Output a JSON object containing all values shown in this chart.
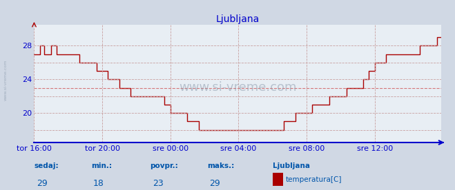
{
  "title": "Ljubljana",
  "bg_color": "#d0d8e4",
  "plot_bg_color": "#e8eef4",
  "line_color": "#aa0000",
  "axis_color": "#0000cc",
  "yticks": [
    20,
    24,
    28
  ],
  "ylim": [
    16.5,
    30.5
  ],
  "xtick_labels": [
    "tor 16:00",
    "tor 20:00",
    "sre 00:00",
    "sre 04:00",
    "sre 08:00",
    "sre 12:00"
  ],
  "xtick_positions": [
    0,
    48,
    96,
    144,
    192,
    240
  ],
  "total_points": 288,
  "footer_labels": [
    "sedaj:",
    "min.:",
    "povpr.:",
    "maks.:"
  ],
  "footer_values": [
    "29",
    "18",
    "23",
    "29"
  ],
  "footer_location": "Ljubljana",
  "footer_series": "temperatura[C]",
  "footer_rect_color": "#aa0000",
  "text_color": "#0055aa",
  "avg_line_y": 23,
  "temperatures": [
    27,
    27,
    27,
    27,
    28,
    28,
    28,
    27,
    27,
    27,
    27,
    27,
    28,
    28,
    28,
    28,
    27,
    27,
    27,
    27,
    27,
    27,
    27,
    27,
    27,
    27,
    27,
    27,
    27,
    27,
    27,
    27,
    26,
    26,
    26,
    26,
    26,
    26,
    26,
    26,
    26,
    26,
    26,
    26,
    25,
    25,
    25,
    25,
    25,
    25,
    25,
    25,
    24,
    24,
    24,
    24,
    24,
    24,
    24,
    24,
    23,
    23,
    23,
    23,
    23,
    23,
    23,
    23,
    22,
    22,
    22,
    22,
    22,
    22,
    22,
    22,
    22,
    22,
    22,
    22,
    22,
    22,
    22,
    22,
    22,
    22,
    22,
    22,
    22,
    22,
    22,
    22,
    21,
    21,
    21,
    21,
    20,
    20,
    20,
    20,
    20,
    20,
    20,
    20,
    20,
    20,
    20,
    20,
    19,
    19,
    19,
    19,
    19,
    19,
    19,
    19,
    18,
    18,
    18,
    18,
    18,
    18,
    18,
    18,
    18,
    18,
    18,
    18,
    18,
    18,
    18,
    18,
    18,
    18,
    18,
    18,
    18,
    18,
    18,
    18,
    18,
    18,
    18,
    18,
    18,
    18,
    18,
    18,
    18,
    18,
    18,
    18,
    18,
    18,
    18,
    18,
    18,
    18,
    18,
    18,
    18,
    18,
    18,
    18,
    18,
    18,
    18,
    18,
    18,
    18,
    18,
    18,
    18,
    18,
    18,
    18,
    19,
    19,
    19,
    19,
    19,
    19,
    19,
    19,
    20,
    20,
    20,
    20,
    20,
    20,
    20,
    20,
    20,
    20,
    20,
    20,
    21,
    21,
    21,
    21,
    21,
    21,
    21,
    21,
    21,
    21,
    21,
    21,
    22,
    22,
    22,
    22,
    22,
    22,
    22,
    22,
    22,
    22,
    22,
    22,
    23,
    23,
    23,
    23,
    23,
    23,
    23,
    23,
    23,
    23,
    23,
    23,
    24,
    24,
    24,
    24,
    25,
    25,
    25,
    25,
    26,
    26,
    26,
    26,
    26,
    26,
    26,
    26,
    27,
    27,
    27,
    27,
    27,
    27,
    27,
    27,
    27,
    27,
    27,
    27,
    27,
    27,
    27,
    27,
    27,
    27,
    27,
    27,
    27,
    27,
    27,
    27,
    28,
    28,
    28,
    28,
    28,
    28,
    28,
    28,
    28,
    28,
    28,
    28,
    29,
    29,
    29,
    29
  ]
}
